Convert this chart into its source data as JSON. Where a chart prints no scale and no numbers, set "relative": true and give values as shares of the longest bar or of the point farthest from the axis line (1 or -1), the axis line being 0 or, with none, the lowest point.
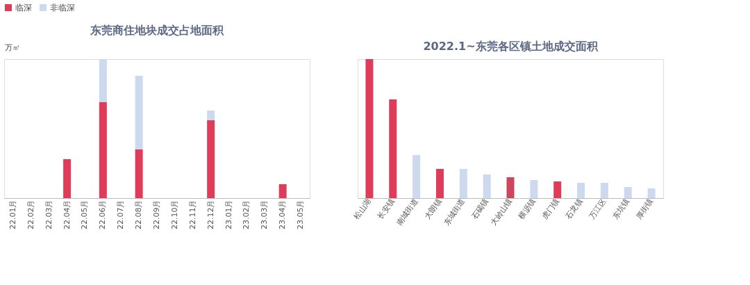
{
  "chart_data": [
    {
      "type": "bar",
      "title": "东莞商住地块成交占地面积",
      "ylabel": "万㎡",
      "relative": true,
      "stacked": true,
      "legend": "top",
      "categories": [
        "22.01月",
        "22.02月",
        "22.03月",
        "22.04月",
        "22.05月",
        "22.06月",
        "22.07月",
        "22.08月",
        "22.09月",
        "22.10月",
        "22.11月",
        "22.12月",
        "23.01月",
        "23.02月",
        "23.03月",
        "23.04月",
        "23.05月"
      ],
      "series": [
        {
          "name": "临深",
          "color": "#e03c5a",
          "values": [
            null,
            null,
            null,
            0.28,
            null,
            0.69,
            null,
            0.35,
            null,
            null,
            null,
            0.56,
            null,
            null,
            null,
            0.1,
            null
          ]
        },
        {
          "name": "非临深",
          "color": "#cdd9ee",
          "values": [
            null,
            null,
            null,
            null,
            null,
            0.31,
            null,
            0.53,
            null,
            null,
            null,
            0.07,
            null,
            null,
            null,
            null,
            null
          ]
        }
      ]
    },
    {
      "type": "bar",
      "title": "2022.1~东莞各区镇土地成交面积",
      "relative": true,
      "categories": [
        "松山湖",
        "长安镇",
        "南城街道",
        "大朗镇",
        "东城街道",
        "石碣镇",
        "大岭山镇",
        "横沥镇",
        "虎门镇",
        "石龙镇",
        "万江区",
        "东坑镇",
        "厚街镇"
      ],
      "values": [
        1,
        0.71,
        0.31,
        0.21,
        0.21,
        0.17,
        0.15,
        0.13,
        0.12,
        0.11,
        0.11,
        0.08,
        0.07
      ],
      "colors": [
        "#e03c5a",
        "#e03c5a",
        "#cdd9ee",
        "#e03c5a",
        "#cdd9ee",
        "#cdd9ee",
        "#d0455e",
        "#cdd9ee",
        "#e03c5a",
        "#cdd9ee",
        "#cdd9ee",
        "#cdd9ee",
        "#cdd9ee"
      ]
    }
  ]
}
